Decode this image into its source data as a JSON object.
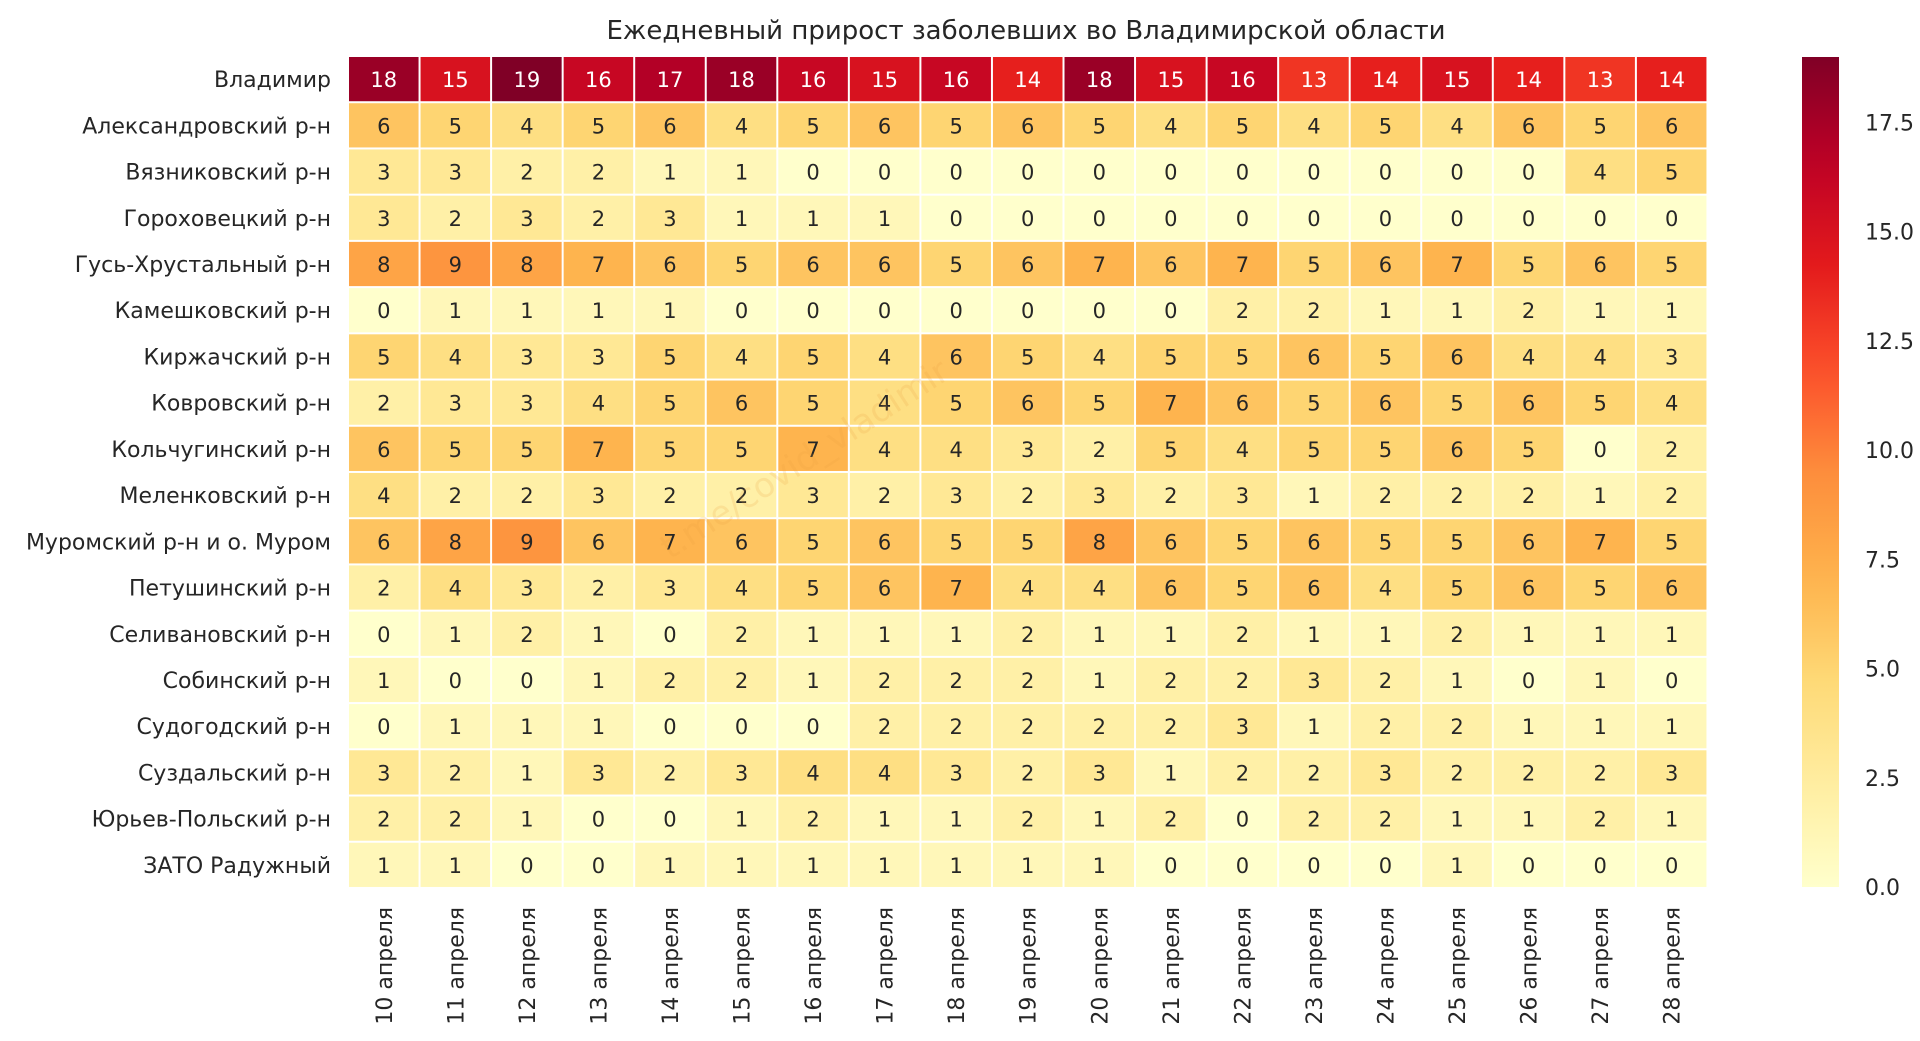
{
  "chart_data": {
    "type": "heatmap",
    "title": "Ежедневный прирост заболевших во Владимирской области",
    "rows": [
      "Владимир",
      "Александровский р-н",
      "Вязниковский р-н",
      "Гороховецкий р-н",
      "Гусь-Хрустальный р-н",
      "Камешковский р-н",
      "Киржачский р-н",
      "Ковровский р-н",
      "Кольчугинский р-н",
      "Меленковский р-н",
      "Муромский р-н и о. Муром",
      "Петушинский р-н",
      "Селивановский р-н",
      "Собинский р-н",
      "Судогодский р-н",
      "Суздальский р-н",
      "Юрьев-Польский р-н",
      "ЗАТО Радужный"
    ],
    "columns": [
      "10 апреля",
      "11 апреля",
      "12 апреля",
      "13 апреля",
      "14 апреля",
      "15 апреля",
      "16 апреля",
      "17 апреля",
      "18 апреля",
      "19 апреля",
      "20 апреля",
      "21 апреля",
      "22 апреля",
      "23 апреля",
      "24 апреля",
      "25 апреля",
      "26 апреля",
      "27 апреля",
      "28 апреля"
    ],
    "values": [
      [
        18,
        15,
        19,
        16,
        17,
        18,
        16,
        15,
        16,
        14,
        18,
        15,
        16,
        13,
        14,
        15,
        14,
        13,
        14
      ],
      [
        6,
        5,
        4,
        5,
        6,
        4,
        5,
        6,
        5,
        6,
        5,
        4,
        5,
        4,
        5,
        4,
        6,
        5,
        6
      ],
      [
        3,
        3,
        2,
        2,
        1,
        1,
        0,
        0,
        0,
        0,
        0,
        0,
        0,
        0,
        0,
        0,
        0,
        4,
        5
      ],
      [
        3,
        2,
        3,
        2,
        3,
        1,
        1,
        1,
        0,
        0,
        0,
        0,
        0,
        0,
        0,
        0,
        0,
        0,
        0
      ],
      [
        8,
        9,
        8,
        7,
        6,
        5,
        6,
        6,
        5,
        6,
        7,
        6,
        7,
        5,
        6,
        7,
        5,
        6,
        5
      ],
      [
        0,
        1,
        1,
        1,
        1,
        0,
        0,
        0,
        0,
        0,
        0,
        0,
        2,
        2,
        1,
        1,
        2,
        1,
        1
      ],
      [
        5,
        4,
        3,
        3,
        5,
        4,
        5,
        4,
        6,
        5,
        4,
        5,
        5,
        6,
        5,
        6,
        4,
        4,
        3
      ],
      [
        2,
        3,
        3,
        4,
        5,
        6,
        5,
        4,
        5,
        6,
        5,
        7,
        6,
        5,
        6,
        5,
        6,
        5,
        4
      ],
      [
        6,
        5,
        5,
        7,
        5,
        5,
        7,
        4,
        4,
        3,
        2,
        5,
        4,
        5,
        5,
        6,
        5,
        0,
        2
      ],
      [
        4,
        2,
        2,
        3,
        2,
        2,
        3,
        2,
        3,
        2,
        3,
        2,
        3,
        1,
        2,
        2,
        2,
        1,
        2
      ],
      [
        6,
        8,
        9,
        6,
        7,
        6,
        5,
        6,
        5,
        5,
        8,
        6,
        5,
        6,
        5,
        5,
        6,
        7,
        5
      ],
      [
        2,
        4,
        3,
        2,
        3,
        4,
        5,
        6,
        7,
        4,
        4,
        6,
        5,
        6,
        4,
        5,
        6,
        5,
        6
      ],
      [
        0,
        1,
        2,
        1,
        0,
        2,
        1,
        1,
        1,
        2,
        1,
        1,
        2,
        1,
        1,
        2,
        1,
        1,
        1
      ],
      [
        1,
        0,
        0,
        1,
        2,
        2,
        1,
        2,
        2,
        2,
        1,
        2,
        2,
        3,
        2,
        1,
        0,
        1,
        0
      ],
      [
        0,
        1,
        1,
        1,
        0,
        0,
        0,
        2,
        2,
        2,
        2,
        2,
        3,
        1,
        2,
        2,
        1,
        1,
        1
      ],
      [
        3,
        2,
        1,
        3,
        2,
        3,
        4,
        4,
        3,
        2,
        3,
        1,
        2,
        2,
        3,
        2,
        2,
        2,
        3
      ],
      [
        2,
        2,
        1,
        0,
        0,
        1,
        2,
        1,
        1,
        2,
        1,
        2,
        0,
        2,
        2,
        1,
        1,
        2,
        1
      ],
      [
        1,
        1,
        0,
        0,
        1,
        1,
        1,
        1,
        1,
        1,
        1,
        0,
        0,
        0,
        0,
        1,
        0,
        0,
        0
      ]
    ],
    "colorbar": {
      "min": 0,
      "max": 19,
      "ticks": [
        "0.0",
        "2.5",
        "5.0",
        "7.5",
        "10.0",
        "12.5",
        "15.0",
        "17.5"
      ],
      "colormap": "YlOrRd"
    },
    "watermark": "t.me/covid_vladimir"
  }
}
